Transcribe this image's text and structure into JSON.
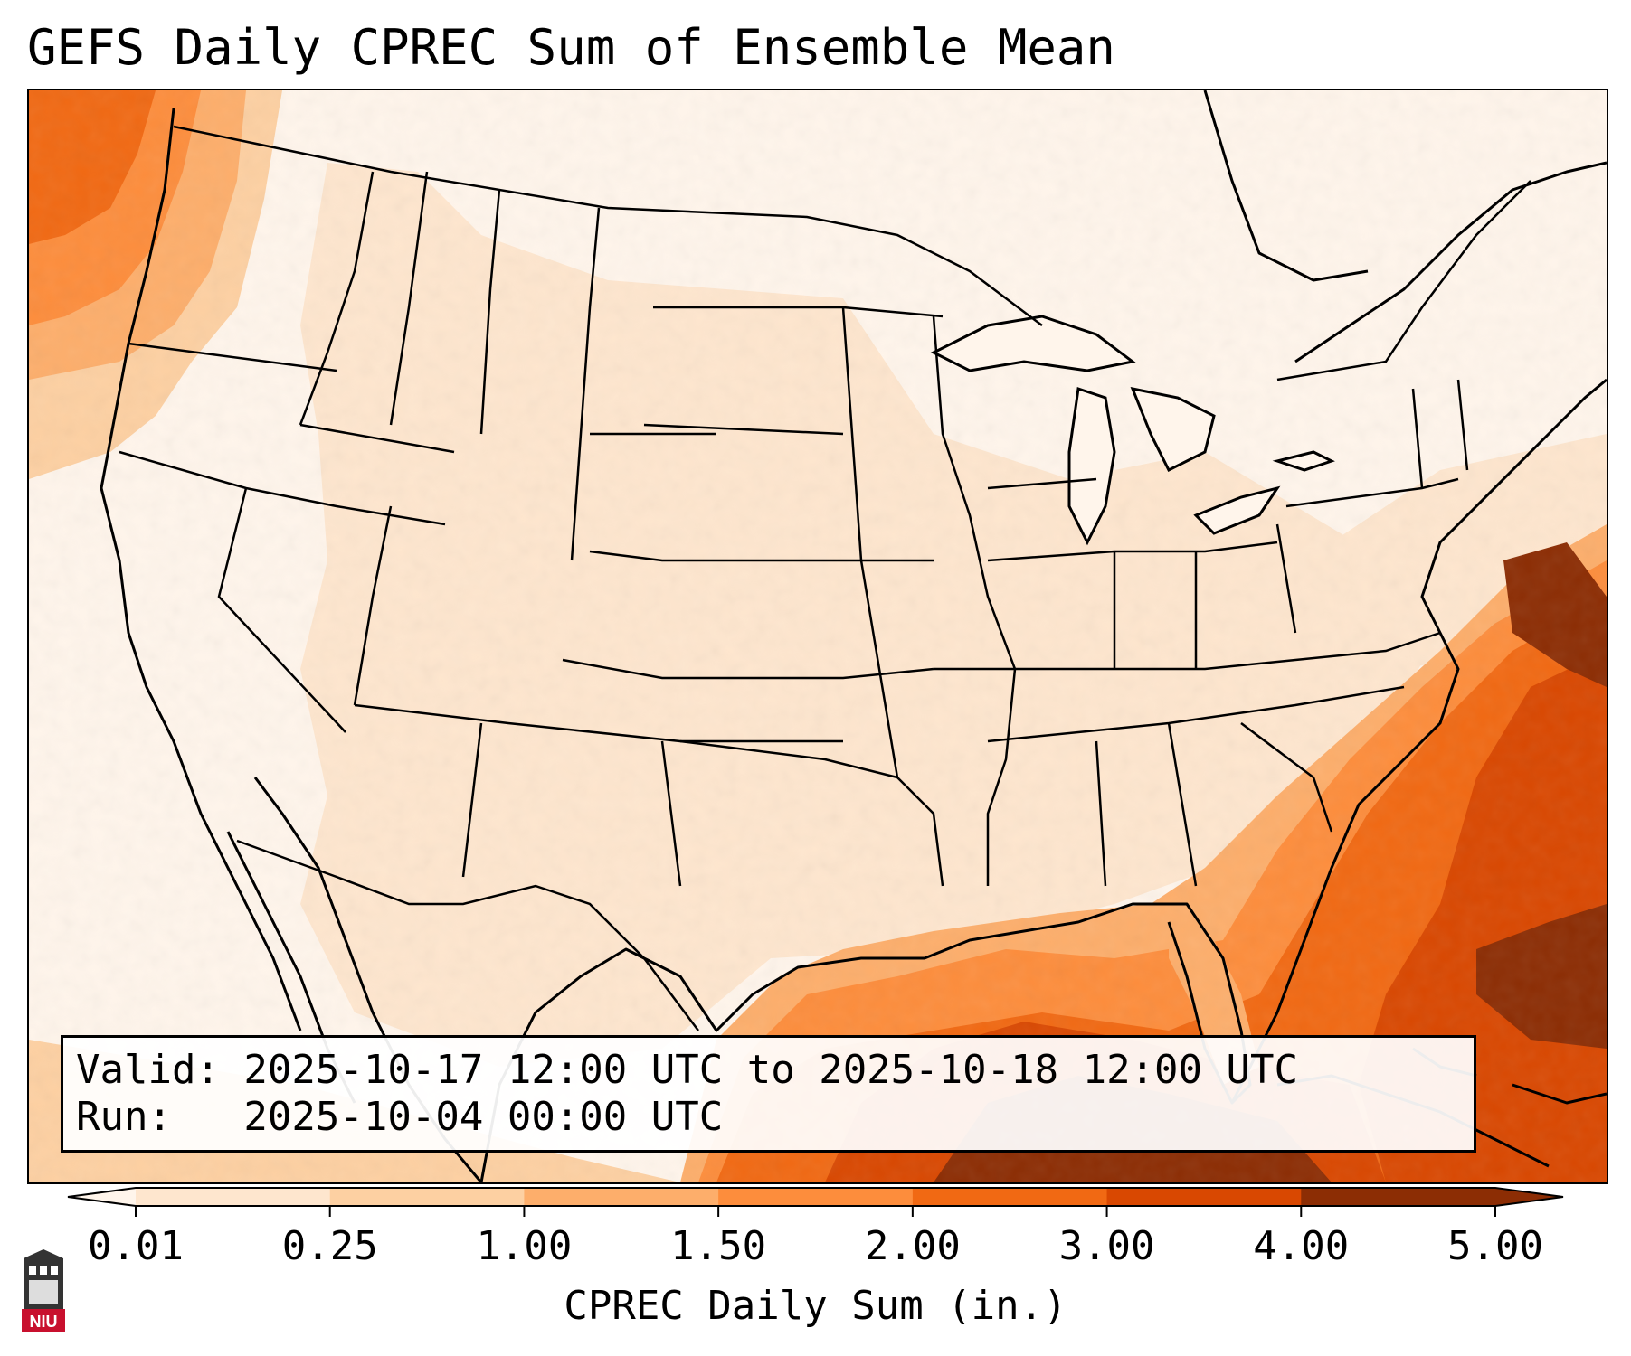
{
  "title": "GEFS Daily CPREC Sum of Ensemble Mean",
  "info": {
    "valid_line": "Valid: 2025-10-17 12:00 UTC to 2025-10-18 12:00 UTC",
    "run_line": "Run:   2025-10-04 00:00 UTC"
  },
  "colorbar": {
    "label": "CPREC Daily Sum (in.)",
    "ticks": [
      "0.01",
      "0.25",
      "1.00",
      "1.50",
      "2.00",
      "3.00",
      "4.00",
      "5.00"
    ],
    "colors": [
      "#fff5eb",
      "#fee6ce",
      "#fdd0a2",
      "#fdae6b",
      "#fd8d3c",
      "#f16913",
      "#d94801",
      "#8c2d04"
    ],
    "extend": "both"
  },
  "logo": {
    "text": "NIU",
    "color": "#c8102e"
  },
  "map": {
    "projection": "lambert-conformal",
    "region": "CONUS, northern Mexico, Gulf of Mexico, western Atlantic",
    "highlights": [
      "Heaviest totals (3.00-5.00+) over Gulf of Mexico, southern Florida coast, Bahamas and western Atlantic off Carolinas",
      "Moderate totals (0.25-1.50) along Pacific Northwest coast",
      "Light totals (0.01-0.25) over most of interior US"
    ]
  }
}
